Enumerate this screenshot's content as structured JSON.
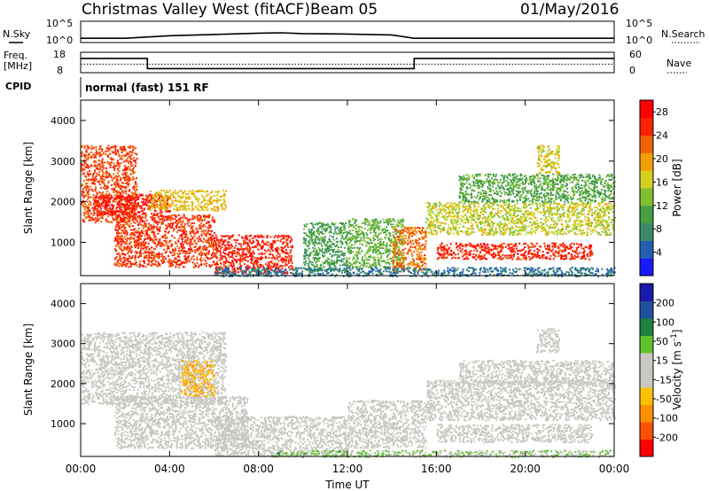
{
  "header": {
    "station": "Christmas Valley West (fitACF)",
    "beam": "Beam 05",
    "date": "01/May/2016"
  },
  "strip_labels": {
    "nsky": "N.Sky",
    "freq_line1": "Freq.",
    "freq_line2": "[MHz]",
    "cpid": "CPID",
    "nsearch": "N.Search",
    "nave": "Nave",
    "cpid_value": "normal (fast) 151 RF",
    "noise_ticks_left": [
      "10^5",
      "10^0"
    ],
    "noise_ticks_right": [
      "10^5",
      "10^0"
    ],
    "freq_ticks": [
      "18",
      "8"
    ],
    "nave_ticks": [
      "60",
      "0"
    ]
  },
  "colors": {
    "power_scale": [
      "#1a1aff",
      "#2060b0",
      "#3a8a6a",
      "#44a040",
      "#80c030",
      "#d4d020",
      "#f0a000",
      "#f06000",
      "#ff2000",
      "#ff0000"
    ],
    "velocity_scale": [
      "#ff0000",
      "#ff5000",
      "#ff9000",
      "#ffc000",
      "#c8c8c0",
      "#c8c8c0",
      "#60c030",
      "#208040",
      "#2050a0",
      "#1a1aaa"
    ],
    "ground_scatter": "#c8c8c0"
  },
  "chart_data": [
    {
      "type": "line",
      "name": "noise-strip",
      "x_range_hours": [
        0,
        24
      ],
      "x": [
        0,
        2,
        4,
        6,
        8,
        9,
        10,
        12,
        14,
        15,
        16,
        18,
        20,
        22,
        24
      ],
      "y_log10": [
        1.0,
        1.0,
        1.6,
        1.9,
        2.2,
        2.3,
        2.1,
        2.0,
        1.8,
        1.0,
        1.0,
        1.0,
        1.0,
        1.0,
        1.0
      ],
      "ylim_log10": [
        0,
        5
      ]
    },
    {
      "type": "line",
      "name": "frequency-strip",
      "x_hours": [
        0,
        3,
        3,
        15,
        15,
        24
      ],
      "freq_mhz": [
        15,
        15,
        10,
        10,
        15,
        15
      ],
      "ylim": [
        8,
        18
      ],
      "nave_dotted": 25
    },
    {
      "type": "heatmap",
      "name": "power-panel",
      "xlabel": "",
      "ylabel": "Slant Range [km]",
      "xlim": [
        0,
        24
      ],
      "ylim": [
        180,
        4500
      ],
      "yticks": [
        1000,
        2000,
        3000,
        4000
      ],
      "colorbar": {
        "label": "Power [dB]",
        "ticks": [
          4,
          8,
          12,
          16,
          20,
          24,
          28
        ],
        "range": [
          0,
          30
        ]
      },
      "regions": [
        {
          "t0": 0.0,
          "t1": 2.5,
          "r0": 1500,
          "r1": 3400,
          "v": 24
        },
        {
          "t0": 0.5,
          "t1": 4.0,
          "r0": 1700,
          "r1": 2200,
          "v": 27
        },
        {
          "t0": 1.5,
          "t1": 6.0,
          "r0": 400,
          "r1": 1700,
          "v": 25
        },
        {
          "t0": 3.0,
          "t1": 6.5,
          "r0": 1800,
          "r1": 2300,
          "v": 18
        },
        {
          "t0": 6.0,
          "t1": 9.5,
          "r0": 250,
          "r1": 1200,
          "v": 26
        },
        {
          "t0": 10.0,
          "t1": 12.0,
          "r0": 300,
          "r1": 1500,
          "v": 10
        },
        {
          "t0": 12.0,
          "t1": 14.5,
          "r0": 400,
          "r1": 1600,
          "v": 12
        },
        {
          "t0": 14.0,
          "t1": 15.5,
          "r0": 300,
          "r1": 1400,
          "v": 22
        },
        {
          "t0": 15.5,
          "t1": 24.0,
          "r0": 1200,
          "r1": 2000,
          "v": 16
        },
        {
          "t0": 16.0,
          "t1": 23.0,
          "r0": 600,
          "r1": 1000,
          "v": 26
        },
        {
          "t0": 17.0,
          "t1": 24.0,
          "r0": 2000,
          "r1": 2700,
          "v": 11
        },
        {
          "t0": 20.5,
          "t1": 21.5,
          "r0": 2700,
          "r1": 3400,
          "v": 17
        },
        {
          "t0": 6.0,
          "t1": 24.0,
          "r0": 180,
          "r1": 400,
          "v": 6
        }
      ]
    },
    {
      "type": "heatmap",
      "name": "velocity-panel",
      "xlabel": "Time UT",
      "ylabel": "Slant Range [km]",
      "xlim": [
        0,
        24
      ],
      "ylim": [
        180,
        4500
      ],
      "yticks": [
        1000,
        2000,
        3000,
        4000
      ],
      "xticks": [
        "00:00",
        "04:00",
        "08:00",
        "12:00",
        "16:00",
        "20:00",
        "00:00"
      ],
      "colorbar": {
        "label": "Velocity [m s^-1]",
        "ticks": [
          200,
          100,
          50,
          15,
          -15,
          -50,
          -100,
          -200
        ],
        "range": [
          -250,
          250
        ]
      },
      "regions": [
        {
          "t0": 0.0,
          "t1": 6.5,
          "r0": 1500,
          "r1": 3300,
          "v": 0
        },
        {
          "t0": 1.5,
          "t1": 7.5,
          "r0": 400,
          "r1": 1700,
          "v": 0
        },
        {
          "t0": 4.5,
          "t1": 6.0,
          "r0": 1700,
          "r1": 2600,
          "v": -80
        },
        {
          "t0": 6.0,
          "t1": 12.0,
          "r0": 200,
          "r1": 1200,
          "v": 0
        },
        {
          "t0": 8.5,
          "t1": 14.0,
          "r0": 180,
          "r1": 350,
          "v": 60
        },
        {
          "t0": 12.0,
          "t1": 15.5,
          "r0": 400,
          "r1": 1600,
          "v": 0
        },
        {
          "t0": 15.5,
          "t1": 24.0,
          "r0": 1100,
          "r1": 2100,
          "v": 0
        },
        {
          "t0": 16.0,
          "t1": 23.0,
          "r0": 550,
          "r1": 1000,
          "v": 0
        },
        {
          "t0": 17.0,
          "t1": 24.0,
          "r0": 2000,
          "r1": 2600,
          "v": 0
        },
        {
          "t0": 20.5,
          "t1": 21.5,
          "r0": 2800,
          "r1": 3400,
          "v": 0
        },
        {
          "t0": 14.0,
          "t1": 24.0,
          "r0": 180,
          "r1": 350,
          "v": 40
        }
      ]
    }
  ]
}
